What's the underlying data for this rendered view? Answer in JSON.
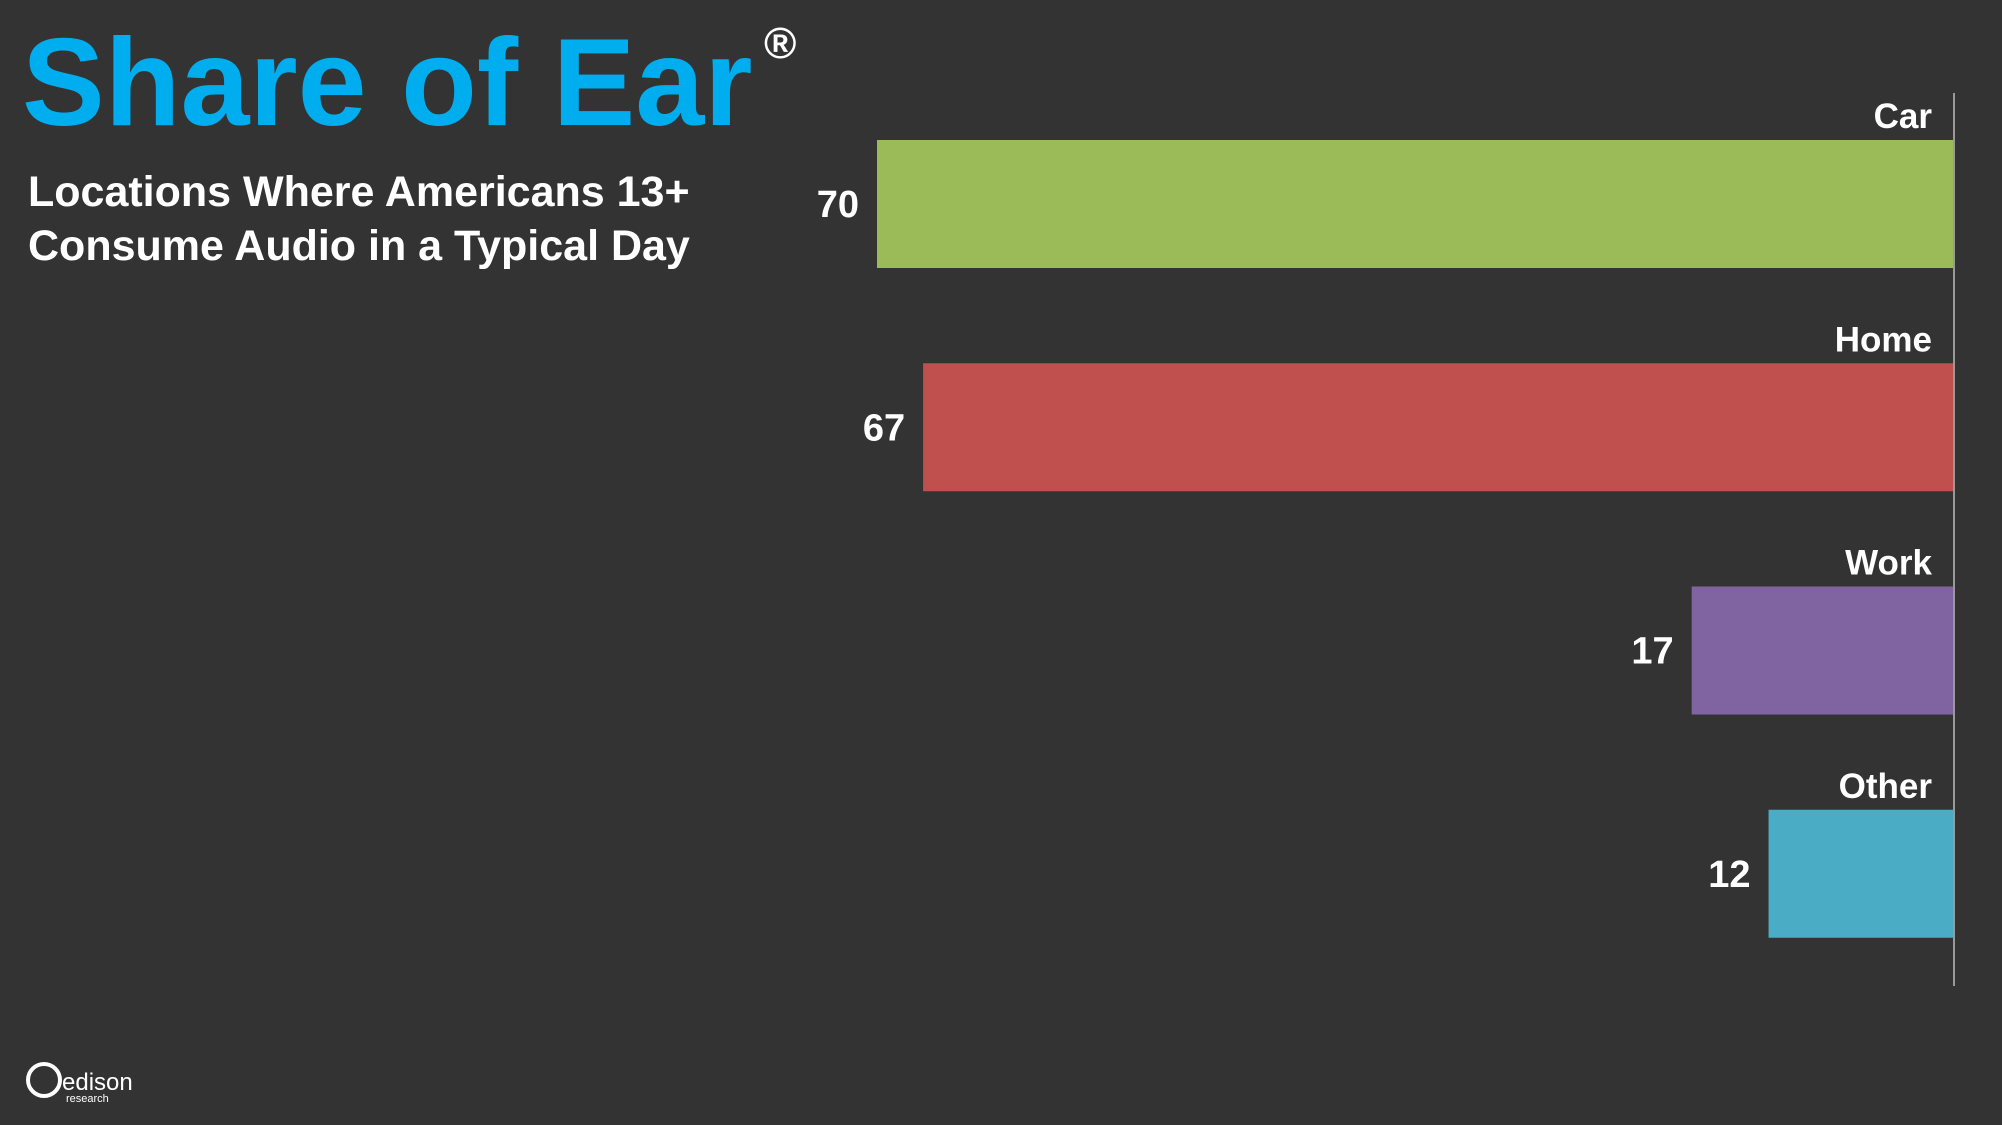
{
  "chart_data": {
    "type": "bar",
    "orientation": "horizontal",
    "direction": "right-to-left",
    "title": "Share of Ear",
    "title_mark": "®",
    "subtitle": [
      "Locations Where Americans 13+",
      "Consume Audio in a Typical Day"
    ],
    "categories": [
      "Car",
      "Home",
      "Work",
      "Other"
    ],
    "values": [
      70,
      67,
      17,
      12
    ],
    "colors": [
      "#9bbb59",
      "#c0504d",
      "#8064a2",
      "#4bacc6"
    ],
    "xlim": [
      0,
      70
    ]
  },
  "logo": {
    "name": "edison",
    "tagline": "research"
  }
}
